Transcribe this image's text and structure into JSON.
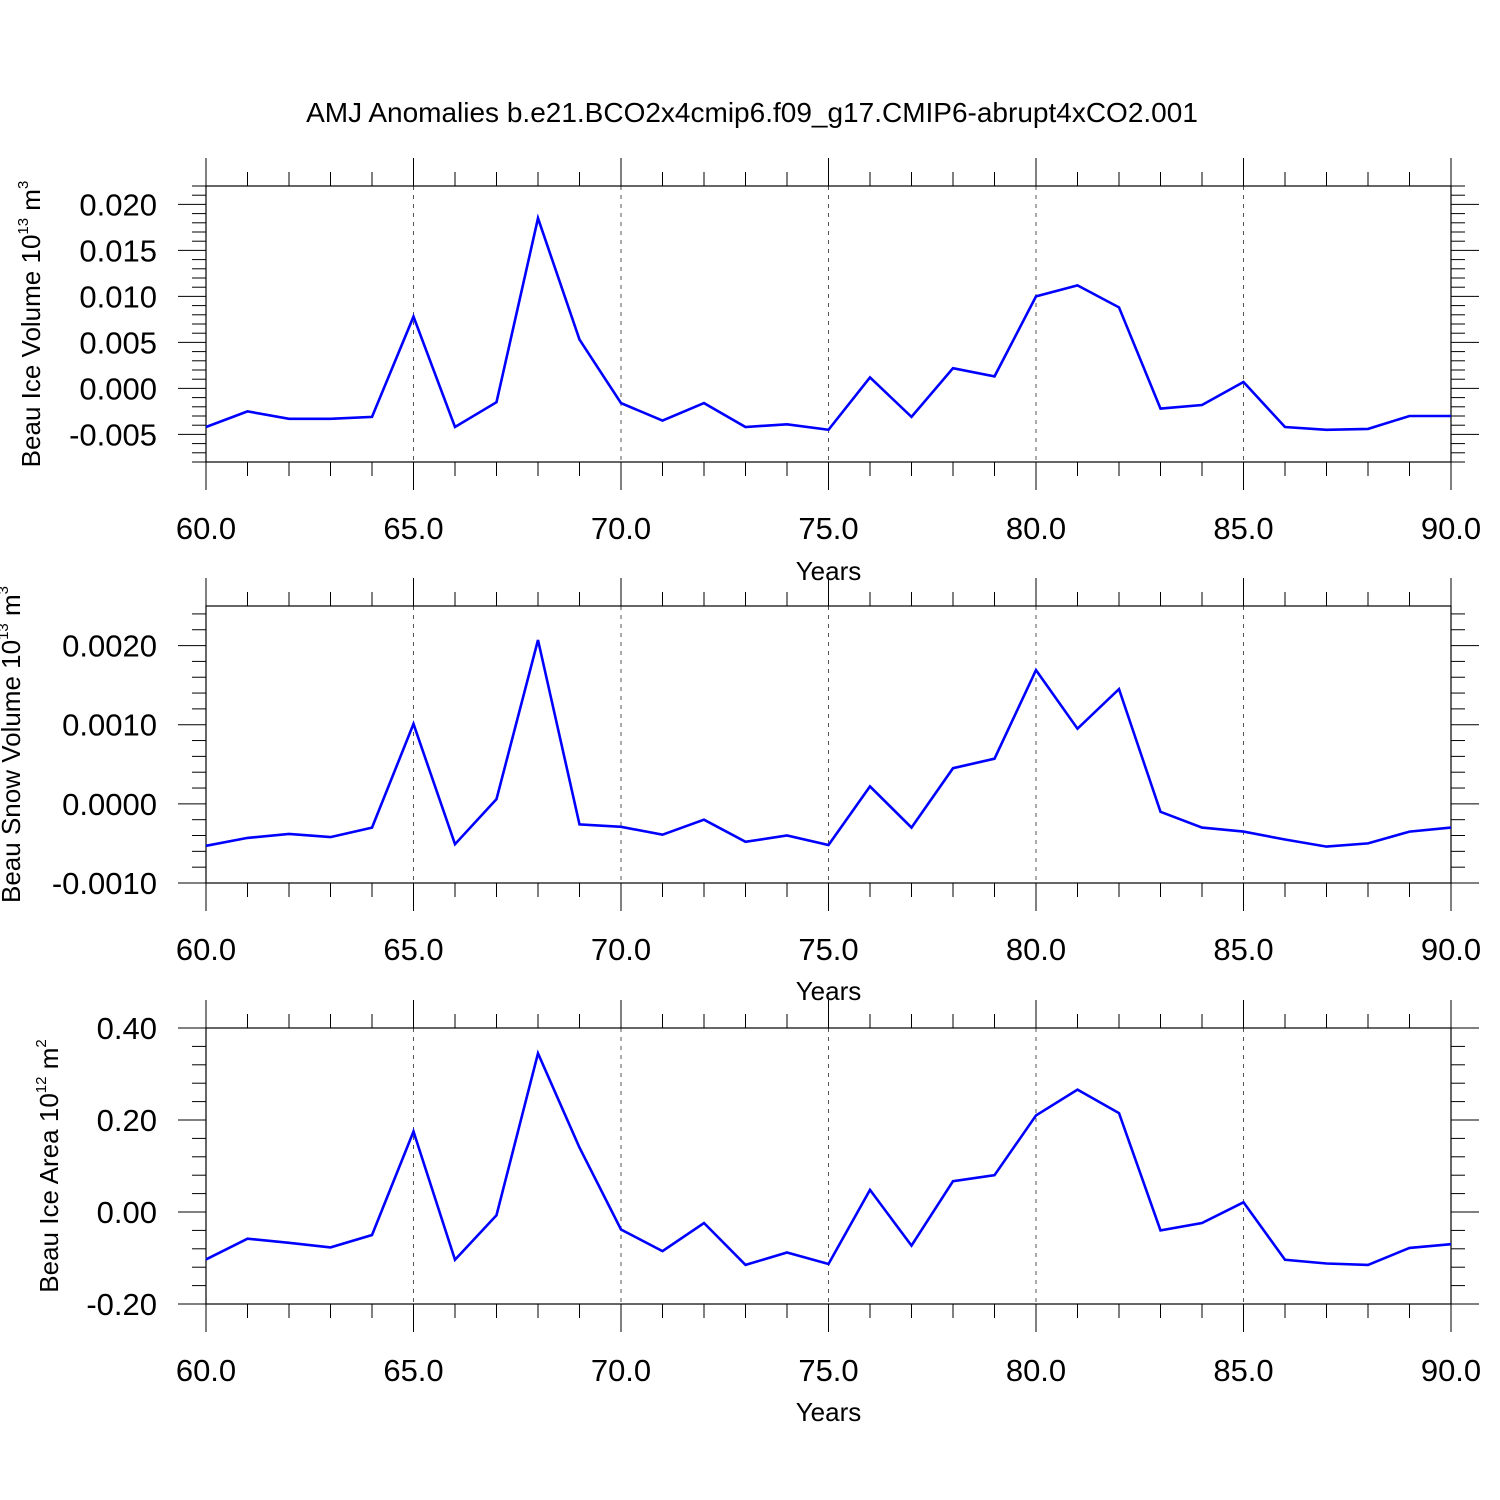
{
  "figure_title": "AMJ Anomalies b.e21.BCO2x4cmip6.f09_g17.CMIP6-abrupt4xCO2.001",
  "chart_data": [
    {
      "type": "line",
      "ylabel": "Beau Ice Volume 10",
      "ylabel_sup": "13",
      "ylabel_unit": " m",
      "ylabel_unit_sup": "3",
      "xlabel": "Years",
      "xlim": [
        60,
        90
      ],
      "ylim": [
        -0.008,
        0.022
      ],
      "xticks": [
        60,
        65,
        70,
        75,
        80,
        85,
        90
      ],
      "xtick_labels": [
        "60.0",
        "65.0",
        "70.0",
        "75.0",
        "80.0",
        "85.0",
        "90.0"
      ],
      "yticks": [
        -0.005,
        0.0,
        0.005,
        0.01,
        0.015,
        0.02
      ],
      "ytick_labels": [
        "-0.005",
        "0.000",
        "0.005",
        "0.010",
        "0.015",
        "0.020"
      ],
      "grid": "vertical dashed at major x ticks",
      "color": "#0000ff",
      "x": [
        60,
        61,
        62,
        63,
        64,
        65,
        66,
        67,
        68,
        69,
        70,
        71,
        72,
        73,
        74,
        75,
        76,
        77,
        78,
        79,
        80,
        81,
        82,
        83,
        84,
        85,
        86,
        87,
        88,
        89,
        90
      ],
      "y": [
        -0.0042,
        -0.0025,
        -0.0033,
        -0.0033,
        -0.0031,
        0.0078,
        -0.0042,
        -0.0015,
        0.0185,
        0.0053,
        -0.0016,
        -0.0035,
        -0.0016,
        -0.0042,
        -0.0039,
        -0.0045,
        0.0012,
        -0.0031,
        0.0022,
        0.0013,
        0.01,
        0.0112,
        0.0088,
        -0.0022,
        -0.0018,
        0.0007,
        -0.0042,
        -0.0045,
        -0.0044,
        -0.003,
        -0.003
      ]
    },
    {
      "type": "line",
      "ylabel": "Beau Snow Volume 10",
      "ylabel_sup": "13",
      "ylabel_unit": " m",
      "ylabel_unit_sup": "3",
      "xlabel": "Years",
      "xlim": [
        60,
        90
      ],
      "ylim": [
        -0.001,
        0.0025
      ],
      "xticks": [
        60,
        65,
        70,
        75,
        80,
        85,
        90
      ],
      "xtick_labels": [
        "60.0",
        "65.0",
        "70.0",
        "75.0",
        "80.0",
        "85.0",
        "90.0"
      ],
      "yticks": [
        -0.001,
        0.0,
        0.001,
        0.002
      ],
      "ytick_labels": [
        "-0.0010",
        "0.0000",
        "0.0010",
        "0.0020"
      ],
      "grid": "vertical dashed at major x ticks",
      "color": "#0000ff",
      "x": [
        60,
        61,
        62,
        63,
        64,
        65,
        66,
        67,
        68,
        69,
        70,
        71,
        72,
        73,
        74,
        75,
        76,
        77,
        78,
        79,
        80,
        81,
        82,
        83,
        84,
        85,
        86,
        87,
        88,
        89,
        90
      ],
      "y": [
        -0.00053,
        -0.00043,
        -0.00038,
        -0.00042,
        -0.0003,
        0.00101,
        -0.00051,
        6e-05,
        0.00207,
        -0.00026,
        -0.00029,
        -0.00039,
        -0.0002,
        -0.00048,
        -0.0004,
        -0.00052,
        0.00022,
        -0.0003,
        0.00045,
        0.00057,
        0.00169,
        0.00095,
        0.00145,
        -0.0001,
        -0.0003,
        -0.00035,
        -0.00045,
        -0.00054,
        -0.0005,
        -0.00035,
        -0.0003
      ]
    },
    {
      "type": "line",
      "ylabel": "Beau Ice Area 10",
      "ylabel_sup": "12",
      "ylabel_unit": " m",
      "ylabel_unit_sup": "2",
      "xlabel": "Years",
      "xlim": [
        60,
        90
      ],
      "ylim": [
        -0.2,
        0.4
      ],
      "xticks": [
        60,
        65,
        70,
        75,
        80,
        85,
        90
      ],
      "xtick_labels": [
        "60.0",
        "65.0",
        "70.0",
        "75.0",
        "80.0",
        "85.0",
        "90.0"
      ],
      "yticks": [
        -0.2,
        0.0,
        0.2,
        0.4
      ],
      "ytick_labels": [
        "-0.20",
        "0.00",
        "0.20",
        "0.40"
      ],
      "grid": "vertical dashed at major x ticks",
      "color": "#0000ff",
      "x": [
        60,
        61,
        62,
        63,
        64,
        65,
        66,
        67,
        68,
        69,
        70,
        71,
        72,
        73,
        74,
        75,
        76,
        77,
        78,
        79,
        80,
        81,
        82,
        83,
        84,
        85,
        86,
        87,
        88,
        89,
        90
      ],
      "y": [
        -0.103,
        -0.058,
        -0.067,
        -0.077,
        -0.05,
        0.175,
        -0.104,
        -0.007,
        0.345,
        0.14,
        -0.038,
        -0.085,
        -0.024,
        -0.115,
        -0.088,
        -0.113,
        0.048,
        -0.073,
        0.067,
        0.08,
        0.21,
        0.266,
        0.215,
        -0.04,
        -0.024,
        0.021,
        -0.104,
        -0.112,
        -0.115,
        -0.078,
        -0.07
      ]
    }
  ]
}
